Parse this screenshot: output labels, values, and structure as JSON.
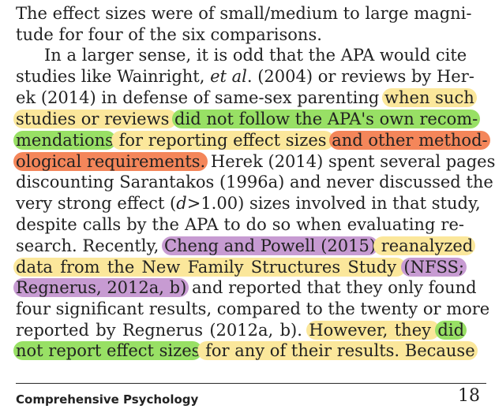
{
  "highlight_colors": {
    "yellow": "#fbe79b",
    "green": "#98e065",
    "orange": "#f4865a",
    "purple": "#c79bd2"
  },
  "lines": [
    [
      {
        "t": "The effect sizes were of small/medium to large magni-"
      }
    ],
    [
      {
        "t": "tude for four of the six comparisons."
      }
    ],
    [
      {
        "t": "In a larger sense, it is odd that the APA would cite"
      }
    ],
    [
      {
        "t": "studies like Wainright, "
      },
      {
        "t": "et al",
        "i": true
      },
      {
        "t": ". (2004) or reviews by Her-"
      }
    ],
    [
      {
        "t": "ek (2014) in defense of same-sex parenting "
      },
      {
        "t": "when such",
        "h": "yellow"
      }
    ],
    [
      {
        "t": "studies or reviews ",
        "h": "yellow"
      },
      {
        "t": "did not follow the APA's own recom-",
        "h": "green"
      }
    ],
    [
      {
        "t": "mendations",
        "h": "green"
      },
      {
        "t": " for reporting effect sizes ",
        "h": "yellow"
      },
      {
        "t": "and other method-",
        "h": "orange"
      }
    ],
    [
      {
        "t": "ological requirements.",
        "h": "orange"
      },
      {
        "t": " Herek (2014) spent several pages"
      }
    ],
    [
      {
        "t": "discounting Sarantakos (1996a) and never discussed the"
      }
    ],
    [
      {
        "t": "very strong effect ("
      },
      {
        "t": "d",
        "i": true
      },
      {
        "t": ">1.00) sizes involved in that study,"
      }
    ],
    [
      {
        "t": "despite calls by the APA to do so when evaluating re-"
      }
    ],
    [
      {
        "t": "search. Recently, "
      },
      {
        "t": "Cheng and Powell (2015)",
        "h": "purple"
      },
      {
        "t": " reanalyzed",
        "h": "yellow"
      }
    ],
    [
      {
        "t": "data from the New Family Structures Study ",
        "h": "yellow"
      },
      {
        "t": "(NFSS;",
        "h": "purple"
      }
    ],
    [
      {
        "t": "Regnerus, 2012a, b)",
        "h": "purple"
      },
      {
        "t": " and reported that they only found"
      }
    ],
    [
      {
        "t": "four significant results, compared to the twenty or more"
      }
    ],
    [
      {
        "t": "reported by Regnerus (2012a, b). "
      },
      {
        "t": "However, they ",
        "h": "yellow"
      },
      {
        "t": "did",
        "h": "green"
      }
    ],
    [
      {
        "t": "not report effect sizes",
        "h": "green"
      },
      {
        "t": " for any of their results. Because",
        "h": "yellow"
      }
    ]
  ],
  "footer": {
    "journal": "Comprehensive Psychology",
    "page_number": "18"
  }
}
